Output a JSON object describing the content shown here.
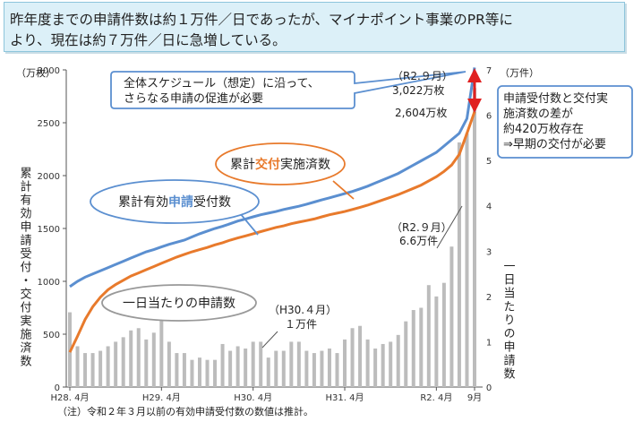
{
  "headline": {
    "line1": "昨年度までの申請件数は約１万件／日であったが、マイナポイント事業のPR等に",
    "line2": "より、現在は約７万件／日に急増している。"
  },
  "footnote": "（注）令和２年３月以前の有効申請受付数の数値は推計。",
  "colors": {
    "applications": "#5b8fd0",
    "issued": "#e87a2c",
    "bars": "#bcbcbc",
    "gap_arrow": "#e02020",
    "headline_bg": "#dcf0f8"
  },
  "callouts": {
    "schedule": {
      "line1": "全体スケジュール（想定）に沿って、",
      "line2": "さらなる申請の促進が必要"
    },
    "gap": {
      "line1": "申請受付数と交付実",
      "line2": "施済数の差が",
      "line3": "約420万枚存在",
      "line4": "⇒早期の交付が必要"
    },
    "issued": {
      "prefix": "累計",
      "highlight": "交付",
      "suffix": "実施済数"
    },
    "applications": {
      "prefix": "累計有効",
      "highlight": "申請",
      "suffix": "受付数"
    },
    "daily": "一日当たりの申請数",
    "h30": {
      "line1": "（H30.４月）",
      "line2": "１万件"
    },
    "r2_daily": {
      "line1": "（R2.９月）",
      "line2": "6.6万件"
    },
    "r2_total": {
      "line1": "（R2.９月）",
      "line2": "3,022万枚"
    },
    "r2_issued": "2,604万枚"
  },
  "chart_data": {
    "type": "line",
    "left_axis": {
      "unit": "（万枚）",
      "label": "累計有効申請受付・交付実施済数",
      "ticks": [
        0,
        500,
        1000,
        1500,
        2000,
        2500,
        3000
      ],
      "range": [
        0,
        3000
      ]
    },
    "right_axis": {
      "unit": "（万件）",
      "label": "一日当たりの申請数",
      "ticks": [
        0,
        1,
        2,
        3,
        4,
        5,
        6,
        7
      ],
      "range": [
        0,
        7
      ]
    },
    "x_ticks": [
      {
        "label": "H28. 4月",
        "month": 0
      },
      {
        "label": "H29. 4月",
        "month": 12
      },
      {
        "label": "H30. 4月",
        "month": 24
      },
      {
        "label": "H31. 4月",
        "month": 36
      },
      {
        "label": "R2. 4月",
        "month": 48
      },
      {
        "label": "9月",
        "month": 53
      }
    ],
    "series": [
      {
        "name": "累計有効申請受付数",
        "axis": "left",
        "values": [
          950,
          1000,
          1040,
          1070,
          1100,
          1130,
          1160,
          1190,
          1220,
          1250,
          1280,
          1300,
          1325,
          1350,
          1370,
          1390,
          1420,
          1450,
          1475,
          1500,
          1520,
          1545,
          1570,
          1590,
          1610,
          1630,
          1645,
          1660,
          1680,
          1695,
          1710,
          1730,
          1750,
          1770,
          1790,
          1810,
          1830,
          1850,
          1875,
          1900,
          1930,
          1960,
          1990,
          2020,
          2060,
          2100,
          2140,
          2180,
          2220,
          2280,
          2340,
          2400,
          2540,
          3022
        ]
      },
      {
        "name": "累計交付実施済数",
        "axis": "left",
        "values": [
          330,
          480,
          640,
          760,
          850,
          920,
          970,
          1010,
          1050,
          1080,
          1110,
          1140,
          1170,
          1200,
          1230,
          1255,
          1280,
          1300,
          1320,
          1345,
          1365,
          1390,
          1410,
          1430,
          1450,
          1470,
          1490,
          1510,
          1525,
          1545,
          1560,
          1575,
          1590,
          1610,
          1630,
          1645,
          1660,
          1680,
          1700,
          1720,
          1745,
          1770,
          1795,
          1820,
          1850,
          1880,
          1910,
          1950,
          1990,
          2040,
          2100,
          2200,
          2400,
          2604
        ]
      },
      {
        "name": "一日当たりの申請数",
        "axis": "right",
        "type": "bar",
        "values": [
          1.65,
          0.9,
          0.75,
          0.75,
          0.8,
          0.9,
          1.0,
          1.1,
          1.25,
          1.3,
          1.05,
          1.2,
          1.55,
          1.0,
          0.75,
          0.75,
          0.6,
          0.65,
          0.6,
          0.6,
          0.95,
          0.8,
          0.9,
          0.85,
          1.0,
          1.0,
          0.65,
          0.8,
          0.8,
          1.0,
          1.0,
          0.8,
          0.75,
          0.8,
          0.85,
          0.75,
          1.05,
          1.3,
          1.35,
          1.05,
          0.85,
          0.95,
          1.0,
          1.15,
          1.45,
          1.7,
          1.75,
          2.25,
          2.0,
          2.3,
          3.1,
          5.4,
          5.6,
          6.6
        ]
      }
    ]
  }
}
